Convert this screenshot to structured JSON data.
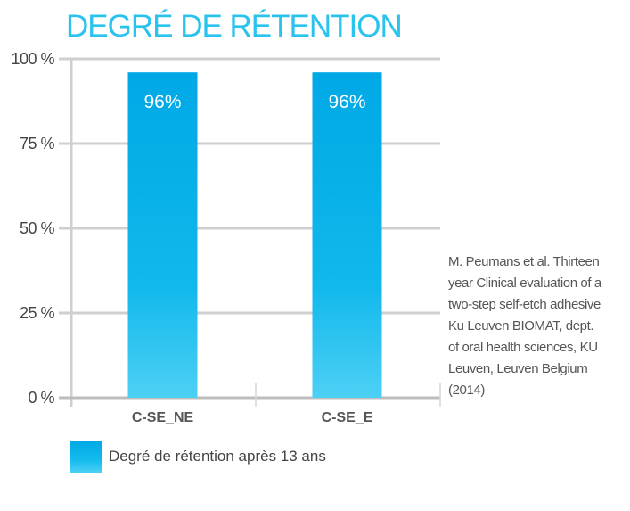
{
  "chart_data": {
    "type": "bar",
    "title": "DEGRÉ DE RÉTENTION",
    "categories": [
      "C-SE_NE",
      "C-SE_E"
    ],
    "series": [
      {
        "name": "Degré de rétention après 13 ans",
        "values": [
          96,
          96
        ]
      }
    ],
    "data_labels": [
      "96%",
      "96%"
    ],
    "yticks": [
      0,
      25,
      50,
      75,
      100
    ],
    "ytick_labels": [
      "0 %",
      "25 %",
      "50 %",
      "75 %",
      "100 %"
    ],
    "ylim": [
      0,
      100
    ],
    "xlabel": "",
    "ylabel": "",
    "grid": true,
    "legend": "bottom-left",
    "bar_color": "#0aaee9",
    "title_color": "#29c3ee"
  },
  "source_lines": [
    "M. Peumans et al. Thirteen",
    "year Clinical evaluation of a",
    "two-step self-etch adhesive",
    "Ku Leuven BIOMAT, dept.",
    "of oral health sciences, KU",
    "Leuven, Leuven Belgium",
    "(2014)"
  ]
}
